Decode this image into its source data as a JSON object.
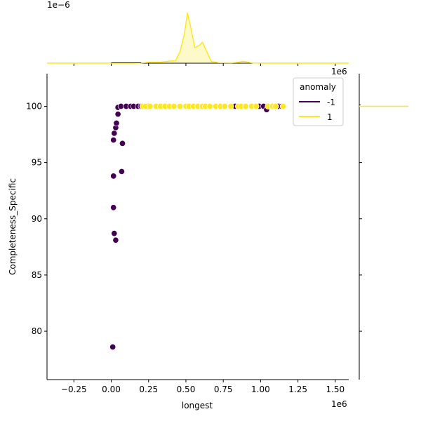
{
  "chart_data": {
    "type": "scatter",
    "subtype": "jointplot",
    "xlabel": "longest",
    "ylabel": "Completeness_Specific",
    "x_offset_label": "1e6",
    "marginal_x_offset_label": "1e6",
    "marginal_y_offset_label": "1e−6",
    "xlim": [
      -0.43,
      1.59
    ],
    "ylim": [
      75.7,
      102.9
    ],
    "xticks": [
      -0.25,
      0.0,
      0.25,
      0.5,
      0.75,
      1.0,
      1.25,
      1.5
    ],
    "xtick_labels": [
      "−0.25",
      "0.00",
      "0.25",
      "0.50",
      "0.75",
      "1.00",
      "1.25",
      "1.50"
    ],
    "yticks": [
      80,
      85,
      90,
      95,
      100
    ],
    "ytick_labels": [
      "80",
      "85",
      "90",
      "95",
      "100"
    ],
    "grid": false,
    "legend": {
      "title": "anomaly",
      "placement": "top-right",
      "entries": [
        "-1",
        "1"
      ]
    },
    "colors": {
      "-1": "#440154",
      "1": "#fde725"
    },
    "series": [
      {
        "name": "-1",
        "points": [
          [
            0.01,
            78.6
          ],
          [
            0.02,
            88.7
          ],
          [
            0.03,
            88.1
          ],
          [
            0.015,
            91.0
          ],
          [
            0.015,
            93.8
          ],
          [
            0.07,
            94.2
          ],
          [
            0.075,
            96.7
          ],
          [
            0.015,
            97.0
          ],
          [
            0.02,
            97.6
          ],
          [
            0.03,
            98.1
          ],
          [
            0.035,
            98.5
          ],
          [
            0.045,
            99.3
          ],
          [
            0.045,
            99.9
          ],
          [
            0.065,
            100
          ],
          [
            0.1,
            100
          ],
          [
            0.13,
            100
          ],
          [
            0.15,
            100
          ],
          [
            0.18,
            100
          ],
          [
            0.2,
            100
          ],
          [
            0.25,
            100
          ],
          [
            0.83,
            100
          ],
          [
            0.99,
            100
          ],
          [
            1.02,
            100
          ],
          [
            1.04,
            99.7
          ],
          [
            1.12,
            100
          ],
          [
            1.14,
            100
          ]
        ]
      },
      {
        "name": "1",
        "points": [
          [
            0.21,
            100
          ],
          [
            0.23,
            100
          ],
          [
            0.26,
            100
          ],
          [
            0.3,
            100
          ],
          [
            0.33,
            100
          ],
          [
            0.36,
            100
          ],
          [
            0.39,
            100
          ],
          [
            0.42,
            100
          ],
          [
            0.46,
            100
          ],
          [
            0.5,
            100
          ],
          [
            0.52,
            100
          ],
          [
            0.55,
            100
          ],
          [
            0.58,
            100
          ],
          [
            0.61,
            100
          ],
          [
            0.63,
            100
          ],
          [
            0.66,
            100
          ],
          [
            0.7,
            100
          ],
          [
            0.73,
            100
          ],
          [
            0.76,
            100
          ],
          [
            0.8,
            100
          ],
          [
            0.85,
            100
          ],
          [
            0.87,
            100
          ],
          [
            0.9,
            100
          ],
          [
            0.94,
            100
          ],
          [
            0.97,
            100
          ],
          [
            1.05,
            100
          ],
          [
            1.08,
            100
          ],
          [
            1.1,
            100
          ],
          [
            1.15,
            100
          ]
        ]
      }
    ],
    "marginal_x_kde": {
      "series": "1",
      "ylim": [
        0,
        3.9
      ],
      "x": [
        -0.43,
        0.15,
        0.19,
        0.26,
        0.33,
        0.38,
        0.43,
        0.46,
        0.49,
        0.51,
        0.53,
        0.56,
        0.59,
        0.61,
        0.63,
        0.67,
        0.72,
        0.8,
        0.85,
        0.88,
        0.91,
        0.95,
        1.05,
        1.59
      ],
      "y": [
        0,
        0,
        0.01,
        0.06,
        0.05,
        0.12,
        0.15,
        0.7,
        1.8,
        3.1,
        2.3,
        0.95,
        1.1,
        1.3,
        0.9,
        0.1,
        0.03,
        0.02,
        0.05,
        0.12,
        0.07,
        0.01,
        0,
        0
      ]
    },
    "marginal_y_kde": {
      "series": "1",
      "note_value": 100
    }
  }
}
